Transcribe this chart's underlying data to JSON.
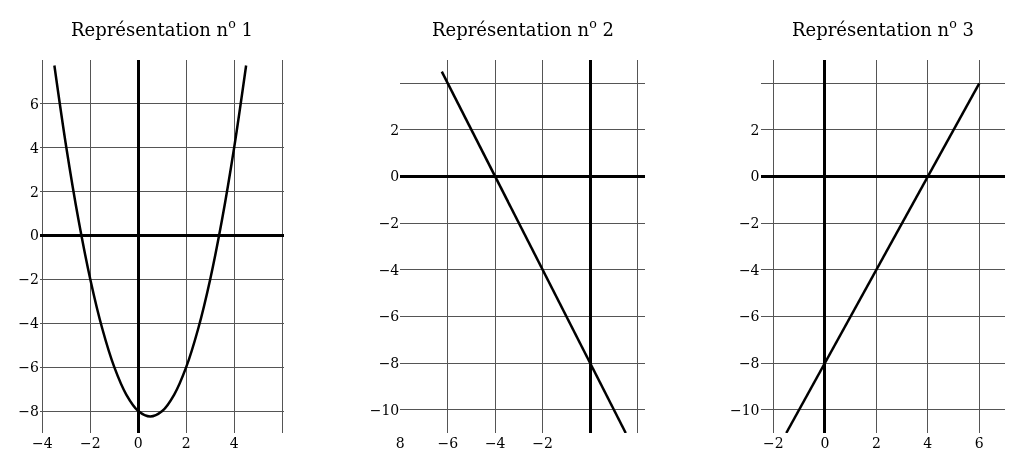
{
  "chart_data": [
    {
      "type": "line",
      "title": "Représentation n$^{o}$ 1",
      "x": [
        -3.5,
        -3,
        -2.5,
        -2,
        -1.5,
        -1,
        -0.5,
        0,
        0.5,
        1,
        1.5,
        2,
        2.5,
        3,
        3.5,
        4,
        4.5
      ],
      "values": [
        7.75,
        4,
        0.75,
        -2,
        -4.25,
        -6,
        -7.25,
        -8,
        -8.25,
        -8,
        -7.25,
        -6,
        -4.25,
        -2,
        0.75,
        4,
        7.75
      ],
      "color": "#000000",
      "xlim": [
        -4.1,
        6.1
      ],
      "ylim": [
        -9,
        8
      ],
      "xticks": [
        {
          "value": -4,
          "label": "−4"
        },
        {
          "value": -2,
          "label": "−2"
        },
        0,
        2,
        4,
        {
          "value": 6,
          "label": null
        }
      ],
      "yticks": [
        {
          "value": -8,
          "label": "−8"
        },
        {
          "value": -6,
          "label": "−6"
        },
        {
          "value": -4,
          "label": "−4"
        },
        {
          "value": -2,
          "label": "−2"
        },
        0,
        2,
        4,
        6
      ],
      "grid": true,
      "legend": false,
      "marker": "none",
      "line_style": "solid"
    },
    {
      "type": "line",
      "title": "Représentation n$^{o}$ 2",
      "x": [
        -6.25,
        1.5
      ],
      "values": [
        4.5,
        -11
      ],
      "color": "#000000",
      "xlim": [
        -8,
        2.3
      ],
      "ylim": [
        -11,
        5
      ],
      "xticks": [
        {
          "value": -8,
          "label": "8"
        },
        {
          "value": -6,
          "label": "−6"
        },
        {
          "value": -4,
          "label": "−4"
        },
        {
          "value": -2,
          "label": "−2"
        },
        {
          "value": 2,
          "label": null
        }
      ],
      "yticks": [
        {
          "value": -10,
          "label": "−10"
        },
        {
          "value": -8,
          "label": "−8"
        },
        {
          "value": -6,
          "label": "−6"
        },
        {
          "value": -4,
          "label": "−4"
        },
        {
          "value": -2,
          "label": "−2"
        },
        0,
        2,
        {
          "value": 4,
          "label": null
        }
      ],
      "grid": true,
      "legend": false,
      "marker": "none",
      "line_style": "solid"
    },
    {
      "type": "line",
      "title": "Représentation n$^{o}$ 3",
      "x": [
        -1.5,
        6
      ],
      "values": [
        -11,
        4
      ],
      "color": "#000000",
      "xlim": [
        -2.5,
        7
      ],
      "ylim": [
        -11,
        5
      ],
      "xticks": [
        {
          "value": -2,
          "label": "−2"
        },
        0,
        2,
        4,
        6
      ],
      "yticks": [
        {
          "value": -10,
          "label": "−10"
        },
        {
          "value": -8,
          "label": "−8"
        },
        {
          "value": -6,
          "label": "−6"
        },
        {
          "value": -4,
          "label": "−4"
        },
        {
          "value": -2,
          "label": "−2"
        },
        0,
        2,
        {
          "value": 4,
          "label": null
        }
      ],
      "grid": true,
      "legend": false,
      "marker": "none",
      "line_style": "solid"
    }
  ]
}
